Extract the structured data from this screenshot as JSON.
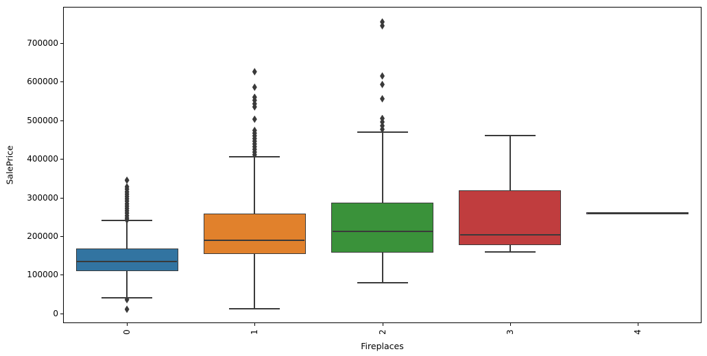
{
  "figure": {
    "background": "#ffffff"
  },
  "chart_data": {
    "type": "boxplot",
    "title": "",
    "xlabel": "Fireplaces",
    "ylabel": "SalePrice",
    "categories": [
      "0",
      "1",
      "2",
      "3",
      "4"
    ],
    "ylim": [
      -25000,
      794000
    ],
    "yticks": [
      0,
      100000,
      200000,
      300000,
      400000,
      500000,
      600000,
      700000
    ],
    "grid": false,
    "legend": null,
    "edge_color": "#3a3a3a",
    "spine_color": "#000000",
    "boxes": [
      {
        "category": "0",
        "color": "#3274a1",
        "whisker_low": 40000,
        "q1": 113000,
        "median": 135000,
        "q3": 165000,
        "whisker_high": 241000,
        "fliers": [
          345000,
          328000,
          322000,
          315000,
          309000,
          303000,
          297000,
          291000,
          284000,
          278000,
          272000,
          266000,
          260000,
          253000,
          247000,
          242000,
          36000,
          11000
        ]
      },
      {
        "category": "1",
        "color": "#e1812c",
        "whisker_low": 12500,
        "q1": 157000,
        "median": 189500,
        "q3": 256000,
        "whisker_high": 406000,
        "fliers": [
          626000,
          586000,
          560000,
          552000,
          543000,
          535000,
          503000,
          474000,
          467000,
          460000,
          453000,
          446000,
          439000,
          432000,
          425000,
          418000,
          411000
        ]
      },
      {
        "category": "2",
        "color": "#3a923a",
        "whisker_low": 79000,
        "q1": 161000,
        "median": 212000,
        "q3": 285000,
        "whisker_high": 470000,
        "fliers": [
          755000,
          745000,
          615000,
          593000,
          556000,
          505000,
          496000,
          486000,
          477000
        ]
      },
      {
        "category": "3",
        "color": "#c03d3e",
        "whisker_low": 160000,
        "q1": 179000,
        "median": 204000,
        "q3": 316000,
        "whisker_high": 461000,
        "fliers": []
      },
      {
        "category": "4",
        "color": "#9372b2",
        "whisker_low": 260000,
        "q1": 260000,
        "median": 260000,
        "q3": 260000,
        "whisker_high": 260000,
        "fliers": []
      }
    ]
  }
}
